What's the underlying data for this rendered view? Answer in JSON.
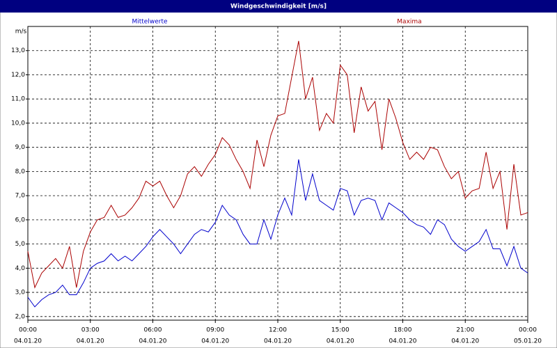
{
  "chart_data": {
    "type": "line",
    "title": "Windgeschwindigkeit [m/s]",
    "y_label": "m/s",
    "x": [
      0,
      20,
      40,
      60,
      80,
      100,
      120,
      140,
      160,
      180,
      200,
      220,
      240,
      260,
      280,
      300,
      320,
      340,
      360,
      380,
      400,
      420,
      440,
      460,
      480,
      500,
      520,
      540,
      560,
      580,
      600,
      620,
      640,
      660,
      680,
      700,
      720,
      740,
      760,
      780,
      800,
      820,
      840,
      860,
      880,
      900,
      920,
      940,
      960,
      980,
      1000,
      1020,
      1040,
      1060,
      1080,
      1100,
      1120,
      1140,
      1160,
      1180,
      1200,
      1220,
      1240,
      1260,
      1280,
      1300,
      1320,
      1340,
      1360,
      1380,
      1400,
      1420,
      1440
    ],
    "series": [
      {
        "name": "Mittelwerte",
        "color": "#0000cc",
        "values": [
          2.8,
          2.4,
          2.7,
          2.9,
          3.0,
          3.3,
          2.9,
          2.9,
          3.4,
          4.0,
          4.2,
          4.3,
          4.6,
          4.3,
          4.5,
          4.3,
          4.6,
          4.9,
          5.3,
          5.6,
          5.3,
          5.0,
          4.6,
          5.0,
          5.4,
          5.6,
          5.5,
          5.9,
          6.6,
          6.2,
          6.0,
          5.4,
          5.0,
          5.0,
          6.0,
          5.2,
          6.2,
          6.9,
          6.2,
          8.5,
          6.8,
          7.9,
          6.8,
          6.6,
          6.4,
          7.3,
          7.2,
          6.2,
          6.8,
          6.9,
          6.8,
          6.0,
          6.7,
          6.5,
          6.3,
          6.0,
          5.8,
          5.7,
          5.4,
          6.0,
          5.8,
          5.2,
          4.9,
          4.7,
          4.9,
          5.1,
          5.6,
          4.8,
          4.8,
          4.1,
          4.9,
          4.0,
          3.8
        ]
      },
      {
        "name": "Maxima",
        "color": "#aa0000",
        "values": [
          4.7,
          3.2,
          3.8,
          4.1,
          4.4,
          4.0,
          4.9,
          3.2,
          4.7,
          5.5,
          6.0,
          6.1,
          6.6,
          6.1,
          6.2,
          6.5,
          6.9,
          7.6,
          7.4,
          7.6,
          7.0,
          6.5,
          7.0,
          7.9,
          8.2,
          7.8,
          8.3,
          8.7,
          9.4,
          9.1,
          8.5,
          8.0,
          7.3,
          9.3,
          8.2,
          9.5,
          10.3,
          10.4,
          11.9,
          13.4,
          11.0,
          11.9,
          9.7,
          10.4,
          10.0,
          12.4,
          12.0,
          9.6,
          11.5,
          10.5,
          10.9,
          8.9,
          11.0,
          10.2,
          9.2,
          8.5,
          8.8,
          8.5,
          9.0,
          8.9,
          8.2,
          7.7,
          8.0,
          6.9,
          7.2,
          7.3,
          8.8,
          7.3,
          8.0,
          5.6,
          8.3,
          6.2,
          6.3
        ]
      }
    ],
    "xlim": [
      0,
      1440
    ],
    "xticks": [
      {
        "value": 0,
        "label": "00:00"
      },
      {
        "value": 180,
        "label": "03:00"
      },
      {
        "value": 360,
        "label": "06:00"
      },
      {
        "value": 540,
        "label": "09:00"
      },
      {
        "value": 720,
        "label": "12:00"
      },
      {
        "value": 900,
        "label": "15:00"
      },
      {
        "value": 1080,
        "label": "18:00"
      },
      {
        "value": 1260,
        "label": "21:00"
      },
      {
        "value": 1440,
        "label": "00:00"
      }
    ],
    "xtick_dates": [
      "04.01.20",
      "04.01.20",
      "04.01.20",
      "04.01.20",
      "04.01.20",
      "04.01.20",
      "04.01.20",
      "04.01.20",
      "05.01.20"
    ],
    "ylim": [
      1.85,
      14.0
    ],
    "yticks": [
      {
        "value": 2,
        "label": "2,0"
      },
      {
        "value": 3,
        "label": "3,0"
      },
      {
        "value": 4,
        "label": "4,0"
      },
      {
        "value": 5,
        "label": "5,0"
      },
      {
        "value": 6,
        "label": "6,0"
      },
      {
        "value": 7,
        "label": "7,0"
      },
      {
        "value": 8,
        "label": "8,0"
      },
      {
        "value": 9,
        "label": "9,0"
      },
      {
        "value": 10,
        "label": "10,0"
      },
      {
        "value": 11,
        "label": "11,0"
      },
      {
        "value": 12,
        "label": "12,0"
      },
      {
        "value": 13,
        "label": "13,0"
      }
    ],
    "grid": true
  }
}
